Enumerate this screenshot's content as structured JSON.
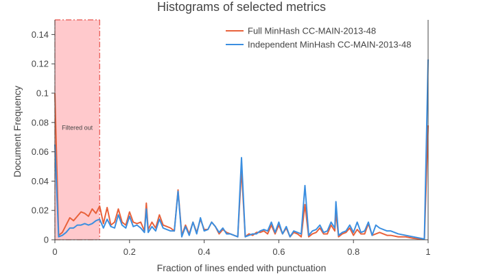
{
  "chart_data": {
    "type": "line",
    "title": "Histograms of selected metrics",
    "xlabel": "Fraction of lines ended with punctuation",
    "ylabel": "Document Frequency",
    "xlim": [
      0,
      1
    ],
    "ylim": [
      0,
      0.15
    ],
    "xticks": [
      {
        "value": 0,
        "label": "0"
      },
      {
        "value": 0.2,
        "label": "0.2"
      },
      {
        "value": 0.4,
        "label": "0.4"
      },
      {
        "value": 0.6,
        "label": "0.6"
      },
      {
        "value": 0.8,
        "label": "0.8"
      },
      {
        "value": 1,
        "label": "1"
      }
    ],
    "yticks": [
      {
        "value": 0,
        "label": "0"
      },
      {
        "value": 0.02,
        "label": "0.02"
      },
      {
        "value": 0.04,
        "label": "0.04"
      },
      {
        "value": 0.06,
        "label": "0.06"
      },
      {
        "value": 0.08,
        "label": "0.08"
      },
      {
        "value": 0.1,
        "label": "0.1"
      },
      {
        "value": 0.12,
        "label": "0.12"
      },
      {
        "value": 0.14,
        "label": "0.14"
      }
    ],
    "legend_position": "top-right",
    "filtered_region": {
      "x0": 0,
      "x1": 0.12,
      "label": "Filtered out",
      "color": "#ffc9cc",
      "edge_color": "#e8524a"
    },
    "series": [
      {
        "name": "Full MinHash CC-MAIN-2013-48",
        "color": "#e8613a",
        "points": [
          [
            0.0,
            0.1
          ],
          [
            0.01,
            0.003
          ],
          [
            0.02,
            0.005
          ],
          [
            0.03,
            0.01
          ],
          [
            0.04,
            0.015
          ],
          [
            0.05,
            0.013
          ],
          [
            0.06,
            0.016
          ],
          [
            0.07,
            0.019
          ],
          [
            0.08,
            0.018
          ],
          [
            0.09,
            0.016
          ],
          [
            0.1,
            0.021
          ],
          [
            0.11,
            0.018
          ],
          [
            0.12,
            0.023
          ],
          [
            0.13,
            0.011
          ],
          [
            0.14,
            0.022
          ],
          [
            0.15,
            0.01
          ],
          [
            0.16,
            0.012
          ],
          [
            0.17,
            0.021
          ],
          [
            0.18,
            0.012
          ],
          [
            0.19,
            0.01
          ],
          [
            0.2,
            0.019
          ],
          [
            0.21,
            0.012
          ],
          [
            0.22,
            0.011
          ],
          [
            0.23,
            0.012
          ],
          [
            0.24,
            0.006
          ],
          [
            0.245,
            0.025
          ],
          [
            0.25,
            0.007
          ],
          [
            0.26,
            0.012
          ],
          [
            0.27,
            0.008
          ],
          [
            0.28,
            0.017
          ],
          [
            0.29,
            0.01
          ],
          [
            0.3,
            0.009
          ],
          [
            0.31,
            0.008
          ],
          [
            0.32,
            0.006
          ],
          [
            0.33,
            0.034
          ],
          [
            0.34,
            0.003
          ],
          [
            0.35,
            0.01
          ],
          [
            0.36,
            0.004
          ],
          [
            0.37,
            0.012
          ],
          [
            0.38,
            0.005
          ],
          [
            0.39,
            0.014
          ],
          [
            0.4,
            0.007
          ],
          [
            0.41,
            0.007
          ],
          [
            0.42,
            0.012
          ],
          [
            0.43,
            0.009
          ],
          [
            0.44,
            0.004
          ],
          [
            0.45,
            0.007
          ],
          [
            0.46,
            0.005
          ],
          [
            0.47,
            0.004
          ],
          [
            0.48,
            0.003
          ],
          [
            0.49,
            0.002
          ],
          [
            0.5,
            0.048
          ],
          [
            0.51,
            0.002
          ],
          [
            0.52,
            0.004
          ],
          [
            0.53,
            0.003
          ],
          [
            0.54,
            0.005
          ],
          [
            0.55,
            0.005
          ],
          [
            0.56,
            0.006
          ],
          [
            0.57,
            0.004
          ],
          [
            0.58,
            0.01
          ],
          [
            0.59,
            0.004
          ],
          [
            0.6,
            0.01
          ],
          [
            0.61,
            0.004
          ],
          [
            0.62,
            0.008
          ],
          [
            0.63,
            0.002
          ],
          [
            0.64,
            0.005
          ],
          [
            0.65,
            0.004
          ],
          [
            0.66,
            0.002
          ],
          [
            0.67,
            0.024
          ],
          [
            0.68,
            0.002
          ],
          [
            0.69,
            0.004
          ],
          [
            0.7,
            0.005
          ],
          [
            0.71,
            0.008
          ],
          [
            0.72,
            0.004
          ],
          [
            0.73,
            0.004
          ],
          [
            0.74,
            0.01
          ],
          [
            0.75,
            0.006
          ],
          [
            0.753,
            0.019
          ],
          [
            0.76,
            0.002
          ],
          [
            0.77,
            0.004
          ],
          [
            0.78,
            0.005
          ],
          [
            0.79,
            0.008
          ],
          [
            0.8,
            0.003
          ],
          [
            0.81,
            0.007
          ],
          [
            0.82,
            0.004
          ],
          [
            0.83,
            0.004
          ],
          [
            0.84,
            0.011
          ],
          [
            0.85,
            0.003
          ],
          [
            0.86,
            0.004
          ],
          [
            0.87,
            0.005
          ],
          [
            0.88,
            0.004
          ],
          [
            0.89,
            0.003
          ],
          [
            0.9,
            0.003
          ],
          [
            0.92,
            0.002
          ],
          [
            0.94,
            0.002
          ],
          [
            0.96,
            0.001
          ],
          [
            0.98,
            0.0005
          ],
          [
            0.99,
            0.0005
          ],
          [
            1.0,
            0.078
          ]
        ]
      },
      {
        "name": "Independent MinHash CC-MAIN-2013-48",
        "color": "#3a8ee0",
        "points": [
          [
            0.0,
            0.065
          ],
          [
            0.01,
            0.002
          ],
          [
            0.02,
            0.003
          ],
          [
            0.03,
            0.005
          ],
          [
            0.04,
            0.008
          ],
          [
            0.05,
            0.008
          ],
          [
            0.06,
            0.01
          ],
          [
            0.07,
            0.01
          ],
          [
            0.08,
            0.011
          ],
          [
            0.09,
            0.01
          ],
          [
            0.1,
            0.011
          ],
          [
            0.11,
            0.013
          ],
          [
            0.12,
            0.014
          ],
          [
            0.13,
            0.008
          ],
          [
            0.14,
            0.014
          ],
          [
            0.15,
            0.009
          ],
          [
            0.16,
            0.008
          ],
          [
            0.17,
            0.017
          ],
          [
            0.18,
            0.01
          ],
          [
            0.19,
            0.008
          ],
          [
            0.2,
            0.016
          ],
          [
            0.21,
            0.009
          ],
          [
            0.22,
            0.01
          ],
          [
            0.23,
            0.008
          ],
          [
            0.24,
            0.005
          ],
          [
            0.245,
            0.021
          ],
          [
            0.25,
            0.005
          ],
          [
            0.26,
            0.009
          ],
          [
            0.27,
            0.006
          ],
          [
            0.28,
            0.014
          ],
          [
            0.29,
            0.008
          ],
          [
            0.3,
            0.007
          ],
          [
            0.31,
            0.006
          ],
          [
            0.32,
            0.006
          ],
          [
            0.33,
            0.033
          ],
          [
            0.34,
            0.002
          ],
          [
            0.35,
            0.009
          ],
          [
            0.36,
            0.003
          ],
          [
            0.37,
            0.012
          ],
          [
            0.38,
            0.004
          ],
          [
            0.39,
            0.015
          ],
          [
            0.4,
            0.006
          ],
          [
            0.41,
            0.007
          ],
          [
            0.42,
            0.012
          ],
          [
            0.43,
            0.009
          ],
          [
            0.44,
            0.005
          ],
          [
            0.45,
            0.008
          ],
          [
            0.46,
            0.004
          ],
          [
            0.47,
            0.004
          ],
          [
            0.48,
            0.003
          ],
          [
            0.49,
            0.002
          ],
          [
            0.5,
            0.056
          ],
          [
            0.51,
            0.002
          ],
          [
            0.52,
            0.003
          ],
          [
            0.53,
            0.004
          ],
          [
            0.54,
            0.004
          ],
          [
            0.55,
            0.006
          ],
          [
            0.56,
            0.007
          ],
          [
            0.57,
            0.006
          ],
          [
            0.58,
            0.012
          ],
          [
            0.59,
            0.005
          ],
          [
            0.6,
            0.012
          ],
          [
            0.61,
            0.004
          ],
          [
            0.62,
            0.009
          ],
          [
            0.63,
            0.002
          ],
          [
            0.64,
            0.006
          ],
          [
            0.65,
            0.005
          ],
          [
            0.66,
            0.004
          ],
          [
            0.67,
            0.037
          ],
          [
            0.68,
            0.003
          ],
          [
            0.69,
            0.006
          ],
          [
            0.7,
            0.007
          ],
          [
            0.71,
            0.01
          ],
          [
            0.72,
            0.005
          ],
          [
            0.73,
            0.006
          ],
          [
            0.74,
            0.012
          ],
          [
            0.75,
            0.008
          ],
          [
            0.753,
            0.026
          ],
          [
            0.76,
            0.003
          ],
          [
            0.77,
            0.005
          ],
          [
            0.78,
            0.006
          ],
          [
            0.79,
            0.01
          ],
          [
            0.8,
            0.005
          ],
          [
            0.81,
            0.012
          ],
          [
            0.82,
            0.005
          ],
          [
            0.83,
            0.006
          ],
          [
            0.84,
            0.012
          ],
          [
            0.85,
            0.003
          ],
          [
            0.86,
            0.01
          ],
          [
            0.87,
            0.008
          ],
          [
            0.88,
            0.007
          ],
          [
            0.89,
            0.006
          ],
          [
            0.9,
            0.006
          ],
          [
            0.92,
            0.004
          ],
          [
            0.94,
            0.003
          ],
          [
            0.96,
            0.002
          ],
          [
            0.98,
            0.001
          ],
          [
            0.99,
            0.0005
          ],
          [
            1.0,
            0.123
          ]
        ]
      }
    ]
  }
}
